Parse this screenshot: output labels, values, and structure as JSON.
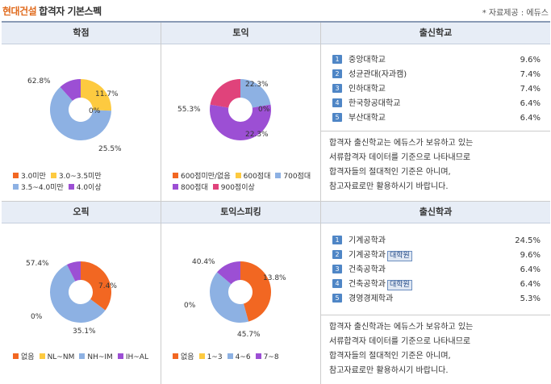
{
  "header": {
    "brand": "현대건설",
    "title": "합격자 기본스펙",
    "source": "* 자료제공 : 에듀스"
  },
  "colors": {
    "orange": "#f26722",
    "yellow": "#fdca40",
    "blue": "#8db1e3",
    "purple": "#9c4fd4",
    "pink": "#e0437b",
    "header_bg": "#e7edf6",
    "number_badge": "#4f86c6"
  },
  "panels": {
    "gpa": {
      "title": "학점",
      "chart_data": {
        "type": "pie",
        "style": "donut",
        "slices": [
          {
            "label": "3.0미만",
            "value": 0,
            "display": "0%",
            "color": "#f26722"
          },
          {
            "label": "3.0~3.5미만",
            "value": 25.5,
            "display": "25.5%",
            "color": "#fdca40"
          },
          {
            "label": "3.5~4.0미만",
            "value": 62.8,
            "display": "62.8%",
            "color": "#8db1e3"
          },
          {
            "label": "4.0이상",
            "value": 11.7,
            "display": "11.7%",
            "color": "#9c4fd4"
          }
        ]
      }
    },
    "toeic": {
      "title": "토익",
      "chart_data": {
        "type": "pie",
        "style": "donut",
        "slices": [
          {
            "label": "600점미만/없음",
            "value": 0,
            "display": "0%",
            "color": "#f26722"
          },
          {
            "label": "600점대",
            "value": 0,
            "display": "",
            "color": "#fdca40"
          },
          {
            "label": "700점대",
            "value": 22.3,
            "display": "22.3%",
            "color": "#8db1e3"
          },
          {
            "label": "800점대",
            "value": 55.3,
            "display": "55.3%",
            "color": "#9c4fd4"
          },
          {
            "label": "900점이상",
            "value": 22.3,
            "display": "22.3%",
            "color": "#e0437b"
          }
        ]
      }
    },
    "school": {
      "title": "출신학교",
      "items": [
        {
          "rank": "1",
          "name": "중앙대학교",
          "tag": "",
          "pct": "9.6%"
        },
        {
          "rank": "2",
          "name": "성균관대(자과캠)",
          "tag": "",
          "pct": "7.4%"
        },
        {
          "rank": "3",
          "name": "인하대학교",
          "tag": "",
          "pct": "7.4%"
        },
        {
          "rank": "4",
          "name": "한국항공대학교",
          "tag": "",
          "pct": "6.4%"
        },
        {
          "rank": "5",
          "name": "부산대학교",
          "tag": "",
          "pct": "6.4%"
        }
      ],
      "note": [
        "합격자 출신학교는 에듀스가 보유하고 있는",
        "서류합격자 데이터를 기준으로 나타내므로",
        "합격자들의 절대적인 기준은 아니며,",
        "참고자료로만 활용하시기 바랍니다."
      ]
    },
    "opic": {
      "title": "오픽",
      "chart_data": {
        "type": "pie",
        "style": "donut",
        "slices": [
          {
            "label": "없음",
            "value": 35.1,
            "display": "35.1%",
            "color": "#f26722"
          },
          {
            "label": "NL~NM",
            "value": 0,
            "display": "0%",
            "color": "#fdca40"
          },
          {
            "label": "NH~IM",
            "value": 57.4,
            "display": "57.4%",
            "color": "#8db1e3"
          },
          {
            "label": "IH~AL",
            "value": 7.4,
            "display": "7.4%",
            "color": "#9c4fd4"
          }
        ]
      }
    },
    "toeic_speaking": {
      "title": "토익스피킹",
      "chart_data": {
        "type": "pie",
        "style": "donut",
        "slices": [
          {
            "label": "없음",
            "value": 45.7,
            "display": "45.7%",
            "color": "#f26722"
          },
          {
            "label": "1~3",
            "value": 0,
            "display": "0%",
            "color": "#fdca40"
          },
          {
            "label": "4~6",
            "value": 40.4,
            "display": "40.4%",
            "color": "#8db1e3"
          },
          {
            "label": "7~8",
            "value": 13.8,
            "display": "13.8%",
            "color": "#9c4fd4"
          }
        ]
      }
    },
    "major": {
      "title": "출신학과",
      "items": [
        {
          "rank": "1",
          "name": "기계공학과",
          "tag": "",
          "pct": "24.5%"
        },
        {
          "rank": "2",
          "name": "기계공학과",
          "tag": "대학원",
          "pct": "9.6%"
        },
        {
          "rank": "3",
          "name": "건축공학과",
          "tag": "",
          "pct": "6.4%"
        },
        {
          "rank": "4",
          "name": "건축공학과",
          "tag": "대학원",
          "pct": "6.4%"
        },
        {
          "rank": "5",
          "name": "경영경제학과",
          "tag": "",
          "pct": "5.3%"
        }
      ],
      "note": [
        "합격자 출신학과는 에듀스가 보유하고 있는",
        "서류합격자 데이터를 기준으로 나타내므로",
        "합격자들의 절대적인 기준은 아니며,",
        "참고자료로만 활용하시기 바랍니다."
      ]
    }
  }
}
